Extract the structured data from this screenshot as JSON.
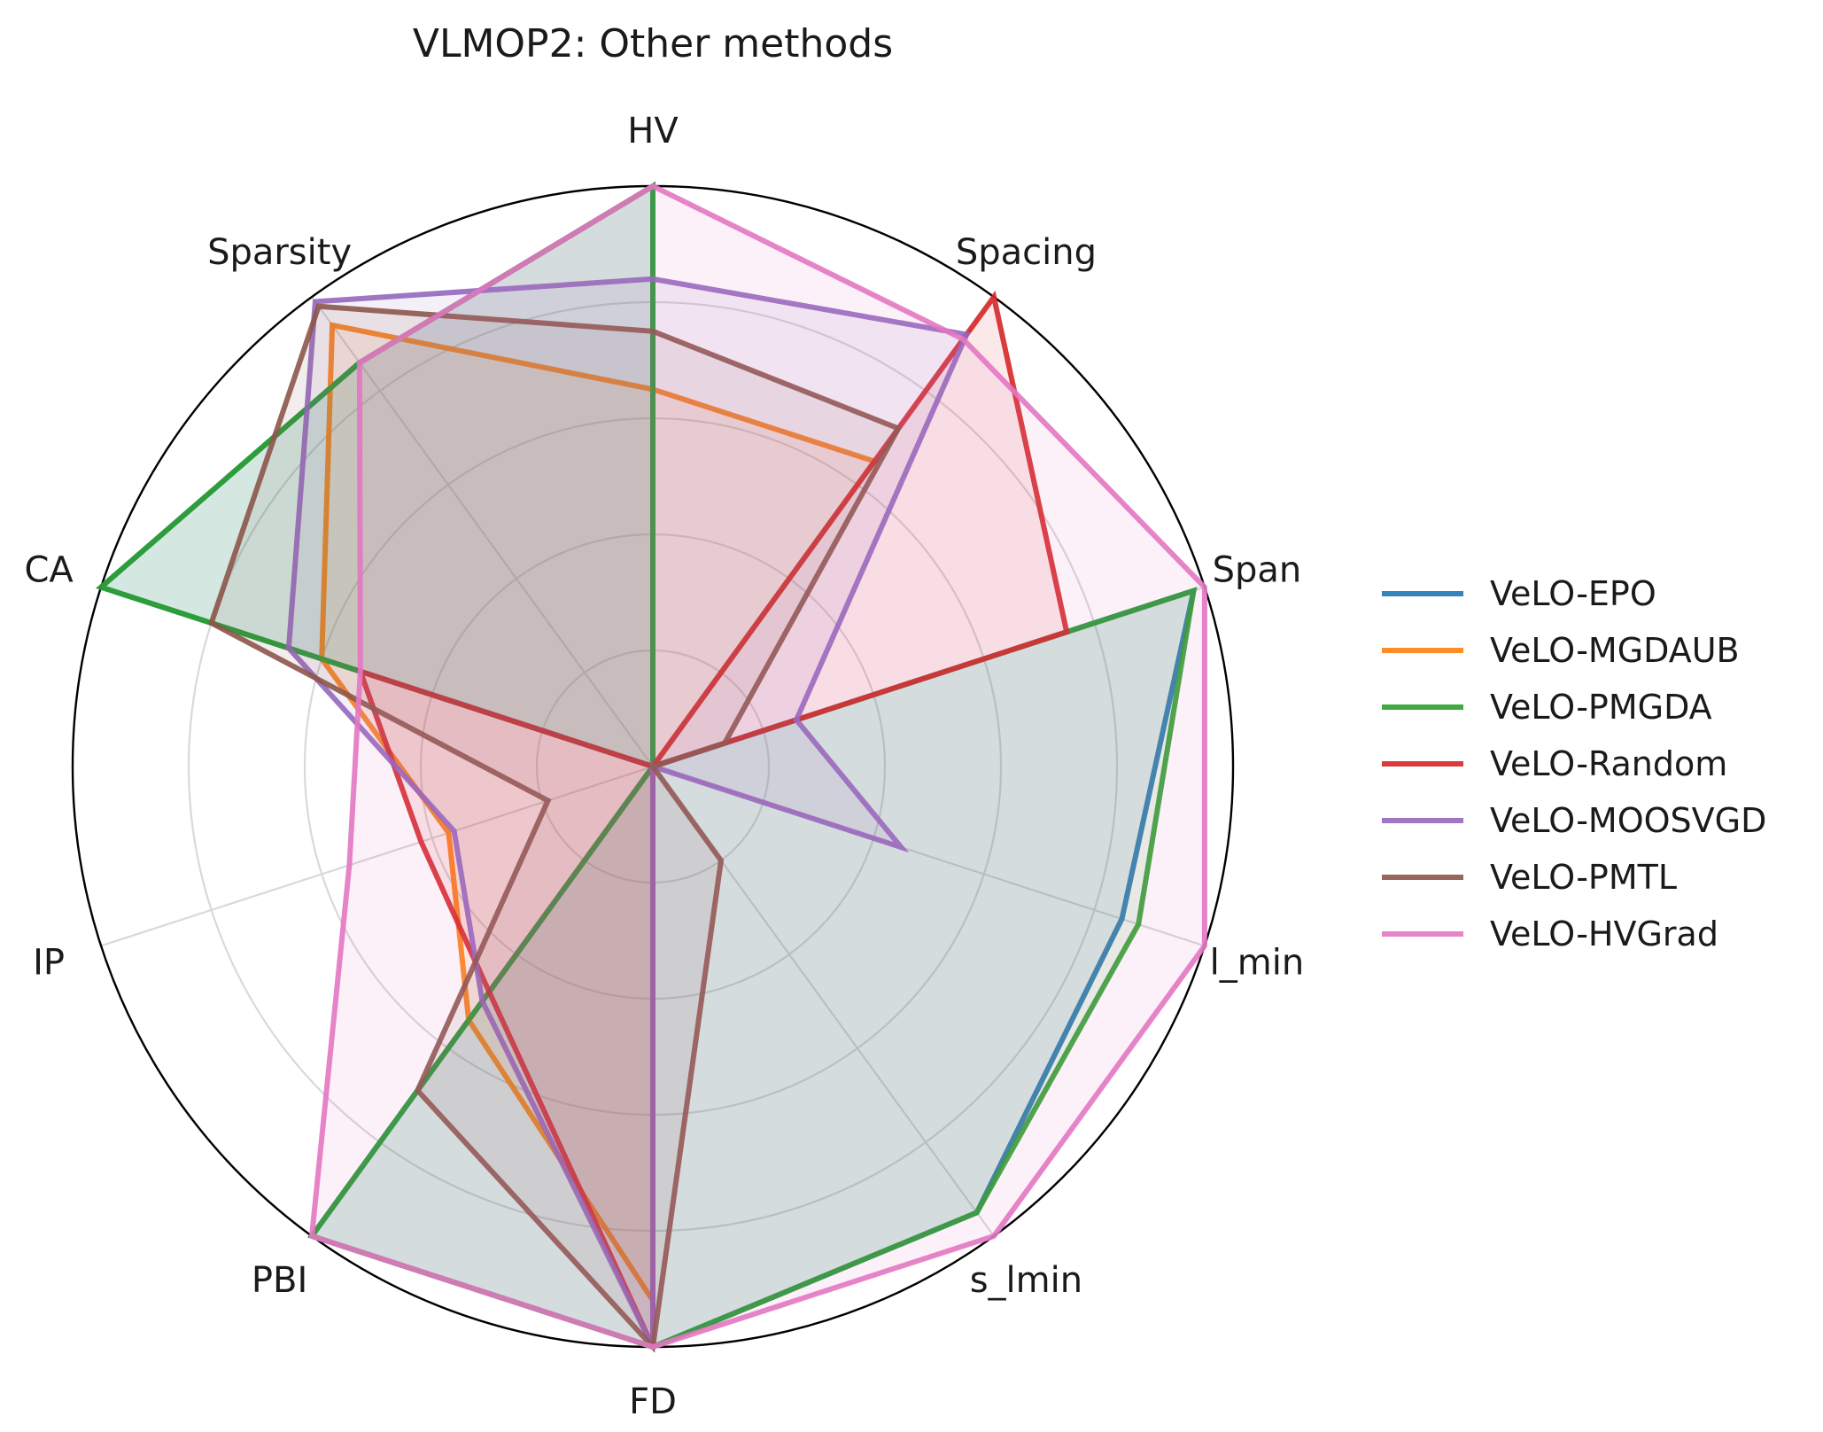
{
  "chart_data": {
    "type": "radar",
    "title": "VLMOP2: Other methods",
    "axes": [
      "HV",
      "Spacing",
      "Span",
      "l_min",
      "s_lmin",
      "FD",
      "PBI",
      "IP",
      "CA",
      "Sparsity"
    ],
    "range": [
      0,
      1
    ],
    "grid": true,
    "legend_position": "right",
    "series": [
      {
        "name": "VeLO-EPO",
        "color": "#1f77b4",
        "values": [
          1.0,
          0.0,
          0.98,
          0.85,
          0.95,
          1.0,
          1.0,
          0.0,
          1.0,
          0.86
        ]
      },
      {
        "name": "VeLO-MGDAUB",
        "color": "#ff7f0e",
        "values": [
          0.65,
          0.65,
          0.0,
          0.0,
          0.0,
          0.92,
          0.54,
          0.37,
          0.6,
          0.94
        ]
      },
      {
        "name": "VeLO-PMGDA",
        "color": "#2ca02c",
        "values": [
          1.0,
          0.0,
          0.98,
          0.88,
          0.95,
          1.0,
          1.0,
          0.0,
          1.0,
          0.86
        ]
      },
      {
        "name": "VeLO-Random",
        "color": "#d62728",
        "values": [
          0.0,
          1.0,
          0.75,
          0.0,
          0.0,
          1.0,
          0.48,
          0.42,
          0.53,
          0.0
        ]
      },
      {
        "name": "VeLO-MOOSVGD",
        "color": "#9467bd",
        "values": [
          0.84,
          0.92,
          0.26,
          0.45,
          0.0,
          1.0,
          0.5,
          0.36,
          0.66,
          0.99
        ]
      },
      {
        "name": "VeLO-PMTL",
        "color": "#8c564b",
        "values": [
          0.75,
          0.72,
          0.13,
          0.0,
          0.2,
          1.0,
          0.69,
          0.19,
          0.8,
          0.98
        ]
      },
      {
        "name": "VeLO-HVGrad",
        "color": "#e377c2",
        "values": [
          1.0,
          0.91,
          1.0,
          1.0,
          1.0,
          1.0,
          1.0,
          0.55,
          0.53,
          0.86
        ]
      }
    ]
  }
}
